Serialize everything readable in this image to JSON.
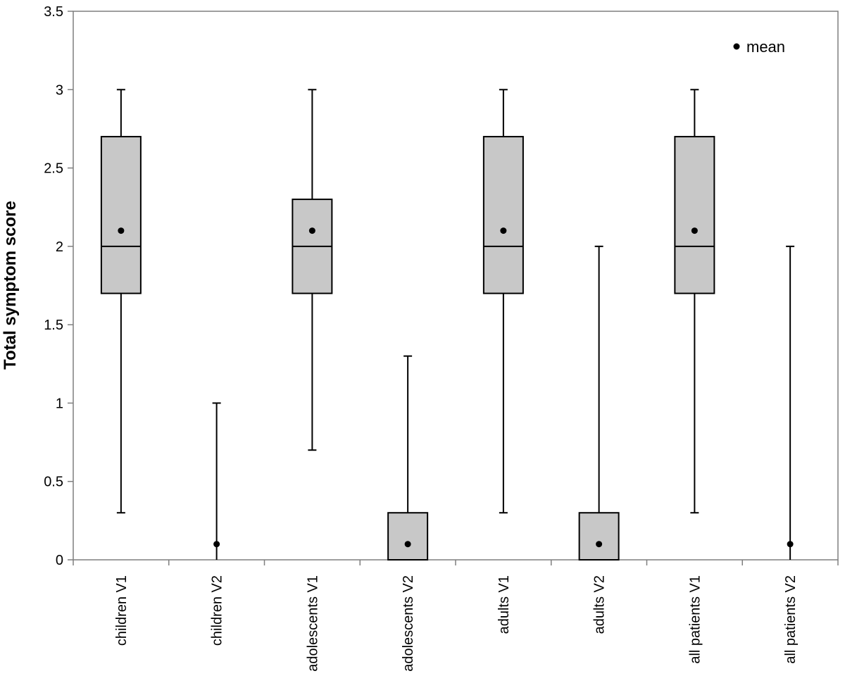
{
  "chart_data": {
    "type": "boxplot",
    "title": "",
    "xlabel": "",
    "ylabel": "Total symptom score",
    "ylim": [
      0,
      3.5
    ],
    "yticks": [
      {
        "value": 0,
        "label": "0"
      },
      {
        "value": 0.5,
        "label": "0.5"
      },
      {
        "value": 1,
        "label": "1"
      },
      {
        "value": 1.5,
        "label": "1.5"
      },
      {
        "value": 2,
        "label": "2"
      },
      {
        "value": 2.5,
        "label": "2.5"
      },
      {
        "value": 3,
        "label": "3"
      },
      {
        "value": 3.5,
        "label": "3.5"
      }
    ],
    "grid": false,
    "legend": {
      "position": "top-right",
      "entries": [
        "mean"
      ]
    },
    "categories": [
      "children V1",
      "children V2",
      "adolescents V1",
      "adolescents V2",
      "adults V1",
      "adults V2",
      "all patients V1",
      "all patients V2"
    ],
    "boxes": [
      {
        "min": 0.3,
        "q1": 1.7,
        "median": 2.0,
        "q3": 2.7,
        "max": 3.0,
        "mean": 2.1
      },
      {
        "min": 0.0,
        "q1": 0.0,
        "median": 0.0,
        "q3": 0.0,
        "max": 1.0,
        "mean": 0.1
      },
      {
        "min": 0.7,
        "q1": 1.7,
        "median": 2.0,
        "q3": 2.3,
        "max": 3.0,
        "mean": 2.1
      },
      {
        "min": 0.0,
        "q1": 0.0,
        "median": 0.0,
        "q3": 0.3,
        "max": 1.3,
        "mean": 0.1
      },
      {
        "min": 0.3,
        "q1": 1.7,
        "median": 2.0,
        "q3": 2.7,
        "max": 3.0,
        "mean": 2.1
      },
      {
        "min": 0.0,
        "q1": 0.0,
        "median": 0.0,
        "q3": 0.3,
        "max": 2.0,
        "mean": 0.1
      },
      {
        "min": 0.3,
        "q1": 1.7,
        "median": 2.0,
        "q3": 2.7,
        "max": 3.0,
        "mean": 2.1
      },
      {
        "min": 0.0,
        "q1": 0.0,
        "median": 0.0,
        "q3": 0.0,
        "max": 2.0,
        "mean": 0.1
      }
    ],
    "colors": {
      "box_fill": "#c8c8c8",
      "stroke": "#000000",
      "axis": "#7f7f7f",
      "mean_dot": "#000000"
    }
  }
}
